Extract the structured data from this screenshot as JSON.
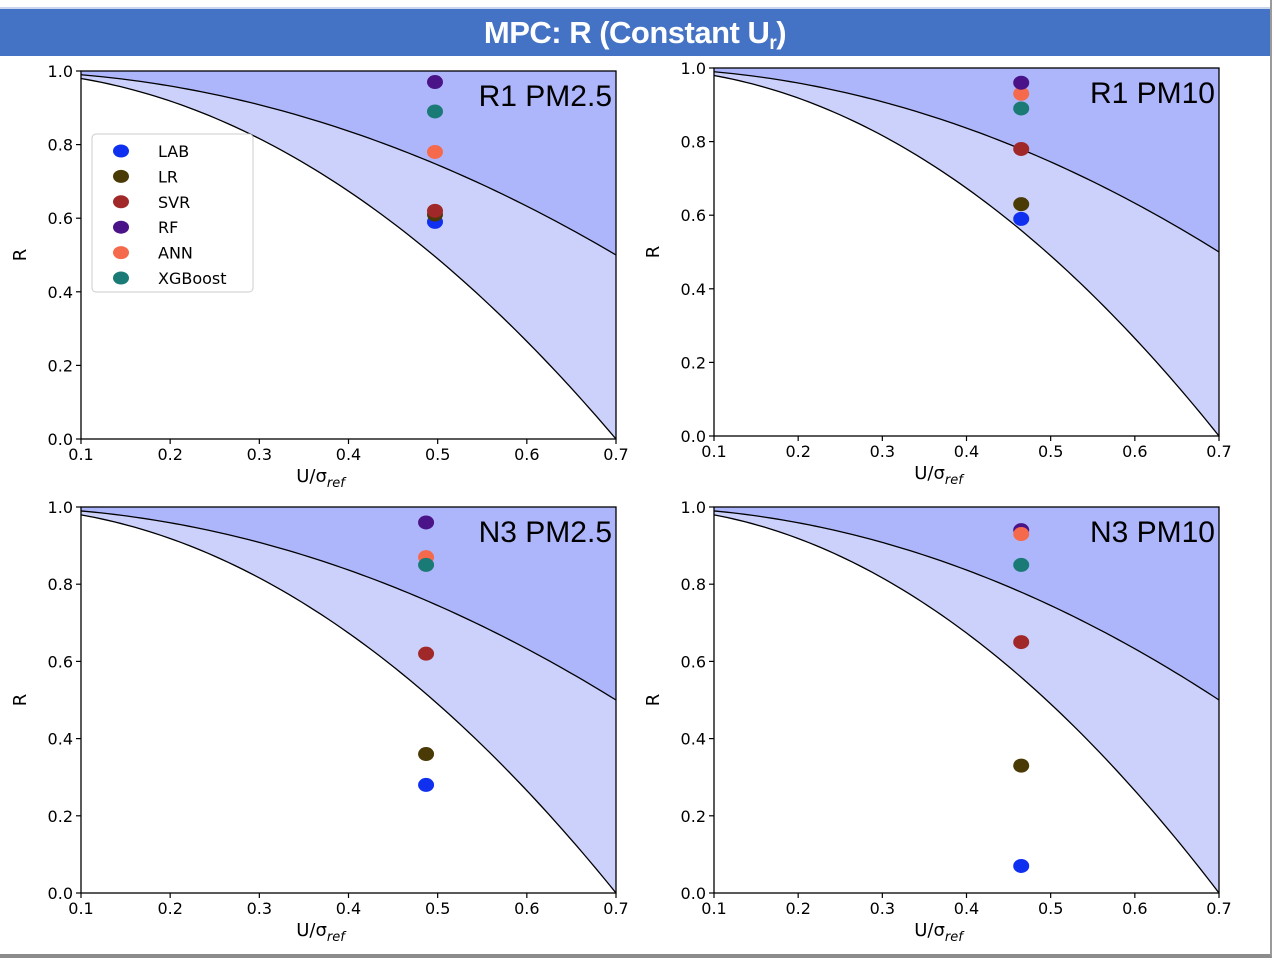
{
  "header": {
    "title_main": "MPC: R (Constant U",
    "title_sub": "r",
    "title_end": ")",
    "background_color": "#4472c4",
    "text_color": "#ffffff"
  },
  "colors": {
    "region_outer": "#ccd1fc",
    "region_inner": "#adb6fb",
    "curve": "#000000"
  },
  "legend": {
    "placement": "upper-left of first panel",
    "entries": [
      {
        "name": "LAB",
        "color": "#1030f0"
      },
      {
        "name": "LR",
        "color": "#4a3a06"
      },
      {
        "name": "SVR",
        "color": "#a02828"
      },
      {
        "name": "RF",
        "color": "#4a1488"
      },
      {
        "name": "ANN",
        "color": "#f56a4c"
      },
      {
        "name": "XGBoost",
        "color": "#1a7a76"
      }
    ]
  },
  "chart_data": [
    {
      "type": "scatter",
      "title": "R1 PM2.5",
      "xlabel_main": "U/σ",
      "xlabel_sub": "ref",
      "ylabel": "R",
      "xlim": [
        0.1,
        0.7
      ],
      "ylim": [
        0.0,
        1.0
      ],
      "xticks": [
        "0.1",
        "0.2",
        "0.3",
        "0.4",
        "0.5",
        "0.6",
        "0.7"
      ],
      "yticks": [
        "0.0",
        "0.2",
        "0.4",
        "0.6",
        "0.8",
        "1.0"
      ],
      "points": [
        {
          "series": "XGBoost",
          "x": 0.497,
          "y": 0.89
        },
        {
          "series": "RF",
          "x": 0.497,
          "y": 0.97
        },
        {
          "series": "ANN",
          "x": 0.497,
          "y": 0.78
        },
        {
          "series": "LAB",
          "x": 0.497,
          "y": 0.59
        },
        {
          "series": "LR",
          "x": 0.497,
          "y": 0.61
        },
        {
          "series": "SVR",
          "x": 0.497,
          "y": 0.62
        }
      ]
    },
    {
      "type": "scatter",
      "title": "R1 PM10",
      "xlabel_main": "U/σ",
      "xlabel_sub": "ref",
      "ylabel": "R",
      "xlim": [
        0.1,
        0.7
      ],
      "ylim": [
        0.0,
        1.0
      ],
      "xticks": [
        "0.1",
        "0.2",
        "0.3",
        "0.4",
        "0.5",
        "0.6",
        "0.7"
      ],
      "yticks": [
        "0.0",
        "0.2",
        "0.4",
        "0.6",
        "0.8",
        "1.0"
      ],
      "points": [
        {
          "series": "LAB",
          "x": 0.465,
          "y": 0.59
        },
        {
          "series": "LR",
          "x": 0.465,
          "y": 0.63
        },
        {
          "series": "SVR",
          "x": 0.465,
          "y": 0.78
        },
        {
          "series": "XGBoost",
          "x": 0.465,
          "y": 0.89
        },
        {
          "series": "ANN",
          "x": 0.465,
          "y": 0.93
        },
        {
          "series": "RF",
          "x": 0.465,
          "y": 0.96
        }
      ]
    },
    {
      "type": "scatter",
      "title": "N3 PM2.5",
      "xlabel_main": "U/σ",
      "xlabel_sub": "ref",
      "ylabel": "R",
      "xlim": [
        0.1,
        0.7
      ],
      "ylim": [
        0.0,
        1.0
      ],
      "xticks": [
        "0.1",
        "0.2",
        "0.3",
        "0.4",
        "0.5",
        "0.6",
        "0.7"
      ],
      "yticks": [
        "0.0",
        "0.2",
        "0.4",
        "0.6",
        "0.8",
        "1.0"
      ],
      "points": [
        {
          "series": "LAB",
          "x": 0.487,
          "y": 0.28
        },
        {
          "series": "LR",
          "x": 0.487,
          "y": 0.36
        },
        {
          "series": "SVR",
          "x": 0.487,
          "y": 0.62
        },
        {
          "series": "ANN",
          "x": 0.487,
          "y": 0.87
        },
        {
          "series": "XGBoost",
          "x": 0.487,
          "y": 0.85
        },
        {
          "series": "RF",
          "x": 0.487,
          "y": 0.96
        }
      ]
    },
    {
      "type": "scatter",
      "title": "N3 PM10",
      "xlabel_main": "U/σ",
      "xlabel_sub": "ref",
      "ylabel": "R",
      "xlim": [
        0.1,
        0.7
      ],
      "ylim": [
        0.0,
        1.0
      ],
      "xticks": [
        "0.1",
        "0.2",
        "0.3",
        "0.4",
        "0.5",
        "0.6",
        "0.7"
      ],
      "yticks": [
        "0.0",
        "0.2",
        "0.4",
        "0.6",
        "0.8",
        "1.0"
      ],
      "points": [
        {
          "series": "LAB",
          "x": 0.465,
          "y": 0.07
        },
        {
          "series": "LR",
          "x": 0.465,
          "y": 0.33
        },
        {
          "series": "SVR",
          "x": 0.465,
          "y": 0.65
        },
        {
          "series": "XGBoost",
          "x": 0.465,
          "y": 0.85
        },
        {
          "series": "RF",
          "x": 0.465,
          "y": 0.94
        },
        {
          "series": "ANN",
          "x": 0.465,
          "y": 0.93
        }
      ]
    }
  ]
}
